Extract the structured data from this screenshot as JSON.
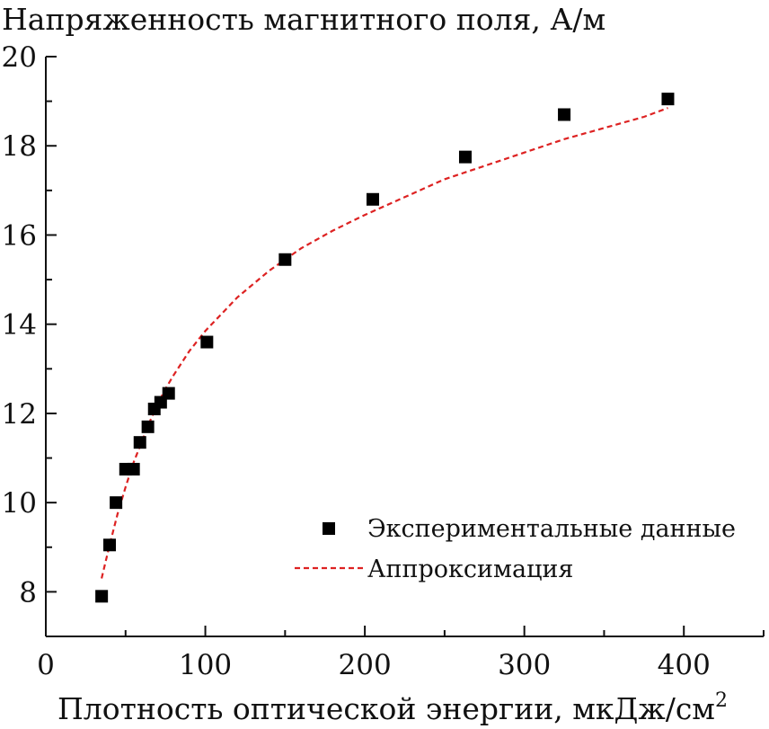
{
  "chart_data": {
    "type": "scatter",
    "ylabel": "Напряженность магнитного поля, А/м",
    "xlabel": "Плотность оптической энергии, мкДж/см",
    "xlabel_superscript": "2",
    "xlim": [
      0,
      450
    ],
    "ylim": [
      7,
      20
    ],
    "xticks": [
      0,
      100,
      200,
      300,
      400
    ],
    "yticks": [
      8,
      10,
      12,
      14,
      16,
      18,
      20
    ],
    "grid": false,
    "legend_position": "lower-right",
    "series": [
      {
        "name": "Экспериментальные данные",
        "kind": "points",
        "marker": "square",
        "color": "#000000",
        "x": [
          35,
          40,
          44,
          50,
          55,
          59,
          64,
          68,
          72,
          77,
          101,
          150,
          205,
          263,
          325,
          390
        ],
        "y": [
          7.9,
          9.05,
          10.0,
          10.75,
          10.75,
          11.35,
          11.7,
          12.1,
          12.25,
          12.45,
          13.6,
          15.45,
          16.8,
          17.75,
          18.7,
          19.05
        ]
      },
      {
        "name": "Аппроксимация",
        "kind": "fit",
        "style": "dashed",
        "color": "#dd2222",
        "x": [
          35,
          40,
          45,
          50,
          55,
          60,
          65,
          70,
          75,
          80,
          90,
          100,
          120,
          140,
          160,
          180,
          200,
          225,
          250,
          275,
          300,
          325,
          350,
          375,
          390
        ],
        "y": [
          8.3,
          9.05,
          9.75,
          10.35,
          10.9,
          11.35,
          11.8,
          12.2,
          12.55,
          12.85,
          13.4,
          13.85,
          14.6,
          15.2,
          15.7,
          16.1,
          16.45,
          16.85,
          17.25,
          17.55,
          17.85,
          18.15,
          18.4,
          18.65,
          18.85
        ]
      }
    ]
  }
}
